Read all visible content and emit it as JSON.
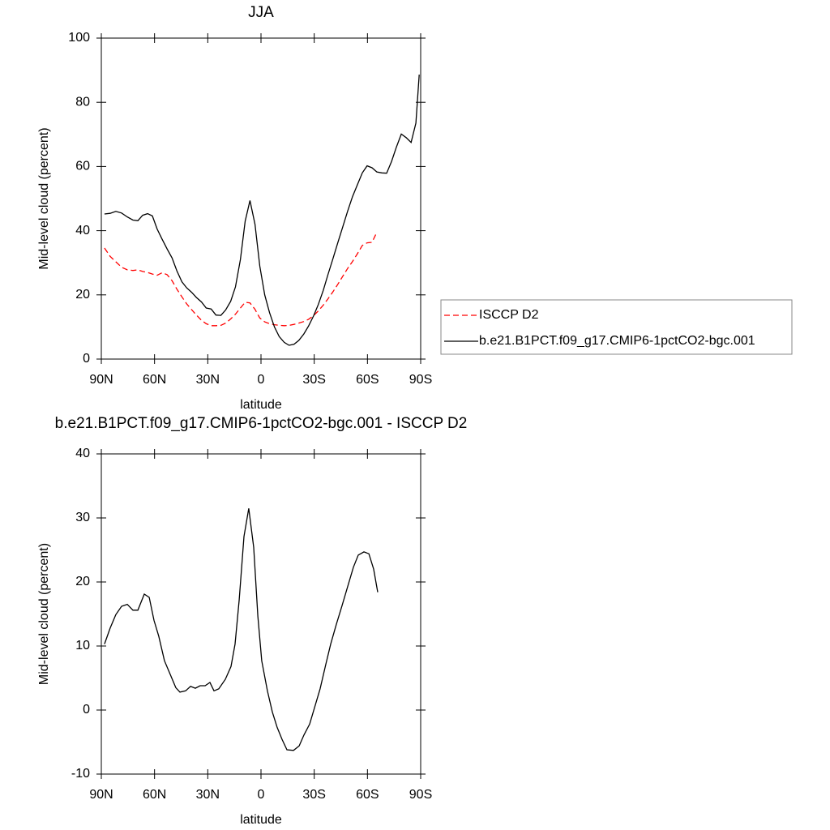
{
  "chart_data": [
    {
      "type": "line",
      "title": "JJA",
      "x_label": "latitude",
      "y_label": "Mid-level cloud (percent)",
      "x": [
        88.2,
        85,
        81.8,
        78.6,
        75.4,
        72.2,
        69.4,
        66.7,
        63.9,
        61.2,
        58.5,
        55.7,
        52.9,
        50.1,
        47.4,
        44.6,
        41.9,
        39.1,
        36.4,
        33.6,
        30.9,
        28.1,
        25.4,
        22.6,
        19.9,
        17.1,
        14.4,
        11.6,
        8.9,
        6.2,
        3.4,
        0.7,
        -2.1,
        -4.8,
        -7.6,
        -10.3,
        -13.1,
        -15.8,
        -18.6,
        -21.3,
        -24.1,
        -26.8,
        -29.6,
        -32.3,
        -35.1,
        -37.8,
        -40.6,
        -43.3,
        -46.1,
        -48.8,
        -51.6,
        -54.3,
        -57.1,
        -59.8,
        -62.6,
        -65.3,
        -68.1,
        -70.8,
        -73.6,
        -76.3,
        -79.1,
        -81.8,
        -84.6,
        -87.3,
        -89.2
      ],
      "series": [
        {
          "name": "ISCCP D2",
          "color": "#ff0000",
          "dashed": true,
          "values": [
            34.6,
            32,
            30.3,
            28.6,
            27.8,
            27.6,
            27.8,
            27.3,
            27,
            26.5,
            26.1,
            26.9,
            26.3,
            24.4,
            21.8,
            19.4,
            17.2,
            15.4,
            13.7,
            12.1,
            11,
            10.4,
            10.4,
            10.5,
            11.2,
            12.5,
            14,
            15.9,
            17.7,
            17.5,
            15.5,
            12.8,
            11.6,
            11,
            10.7,
            10.5,
            10.4,
            10.5,
            10.8,
            11.2,
            11.7,
            12.4,
            13.5,
            15,
            16.8,
            18.8,
            21,
            23.3,
            25.8,
            28.2,
            30.4,
            32.8,
            35.4,
            36.2,
            36.4,
            39.5,
            null,
            null,
            null,
            null,
            null,
            null,
            null,
            null,
            null
          ]
        },
        {
          "name": "b.e21.B1PCT.f09_g17.CMIP6-1pctCO2-bgc.001",
          "color": "#000000",
          "dashed": false,
          "values": [
            45.2,
            45.4,
            46,
            45.5,
            44.3,
            43.3,
            43.1,
            44.8,
            45.3,
            44.6,
            40.5,
            37.3,
            34.3,
            31.5,
            27.5,
            24.1,
            22.2,
            20.8,
            19.2,
            17.8,
            15.9,
            15.6,
            13.7,
            13.6,
            15.3,
            18,
            22.5,
            31,
            43,
            49.4,
            42,
            29,
            20,
            14.5,
            10,
            7,
            5.2,
            4.3,
            4.6,
            5.8,
            7.8,
            10.3,
            13.4,
            17,
            21.4,
            26.4,
            31.4,
            36.3,
            41.2,
            46,
            50.6,
            54.3,
            58,
            60.2,
            59.6,
            58.3,
            58,
            57.9,
            61.6,
            66,
            70.1,
            69,
            67.5,
            73.5,
            88.6
          ]
        }
      ],
      "xlim": [
        90,
        -90
      ],
      "xticks": [
        {
          "value": 90,
          "label": "90N"
        },
        {
          "value": 60,
          "label": "60N"
        },
        {
          "value": 30,
          "label": "30N"
        },
        0,
        {
          "value": -30,
          "label": "30S"
        },
        {
          "value": -60,
          "label": "60S"
        },
        {
          "value": -90,
          "label": "90S"
        }
      ],
      "ylim": [
        0,
        100
      ],
      "yticks": [
        0,
        20,
        40,
        60,
        80,
        100
      ],
      "legend": "right"
    },
    {
      "type": "line",
      "title": "b.e21.B1PCT.f09_g17.CMIP6-1pctCO2-bgc.001 - ISCCP D2",
      "x_label": "latitude",
      "y_label": "Mid-level cloud (percent)",
      "x": [
        88.2,
        85,
        81.8,
        78.6,
        75.4,
        72.2,
        69.4,
        65.8,
        63,
        60.3,
        57.6,
        54.4,
        51.2,
        48,
        45.7,
        42.5,
        39.7,
        37,
        34.3,
        31.5,
        28.8,
        26.5,
        23.8,
        20.1,
        16.9,
        14.6,
        12.3,
        9.6,
        6.9,
        4.1,
        1.8,
        -0.4,
        -3.6,
        -6.4,
        -9.1,
        -11.9,
        -14.6,
        -18.3,
        -21.5,
        -24.2,
        -27.4,
        -30.1,
        -33.3,
        -36.5,
        -39.3,
        -42.5,
        -45.7,
        -49.3,
        -52.1,
        -54.8,
        -58,
        -60.8,
        -63.5,
        -65.8
      ],
      "series": [
        {
          "color": "#000000",
          "dashed": false,
          "values": [
            10.3,
            12.8,
            14.9,
            16.2,
            16.5,
            15.6,
            15.6,
            18.1,
            17.6,
            14,
            11.5,
            7.7,
            5.6,
            3.5,
            2.8,
            3,
            3.7,
            3.4,
            3.8,
            3.8,
            4.3,
            3,
            3.3,
            4.8,
            6.8,
            10.3,
            17.2,
            27.1,
            31.5,
            25.4,
            14.7,
            7.7,
            3,
            -0.3,
            -2.7,
            -4.6,
            -6.2,
            -6.3,
            -5.6,
            -3.9,
            -2.2,
            0.3,
            3.3,
            7.1,
            10.3,
            13.4,
            16.3,
            19.7,
            22.3,
            24.2,
            24.7,
            24.4,
            22,
            18.4
          ]
        }
      ],
      "xlim": [
        90,
        -90
      ],
      "xticks": [
        {
          "value": 90,
          "label": "90N"
        },
        {
          "value": 60,
          "label": "60N"
        },
        {
          "value": 30,
          "label": "30N"
        },
        0,
        {
          "value": -30,
          "label": "30S"
        },
        {
          "value": -60,
          "label": "60S"
        },
        {
          "value": -90,
          "label": "90S"
        }
      ],
      "ylim": [
        -10,
        40
      ],
      "yticks": [
        -10,
        0,
        10,
        20,
        30,
        40
      ]
    }
  ]
}
